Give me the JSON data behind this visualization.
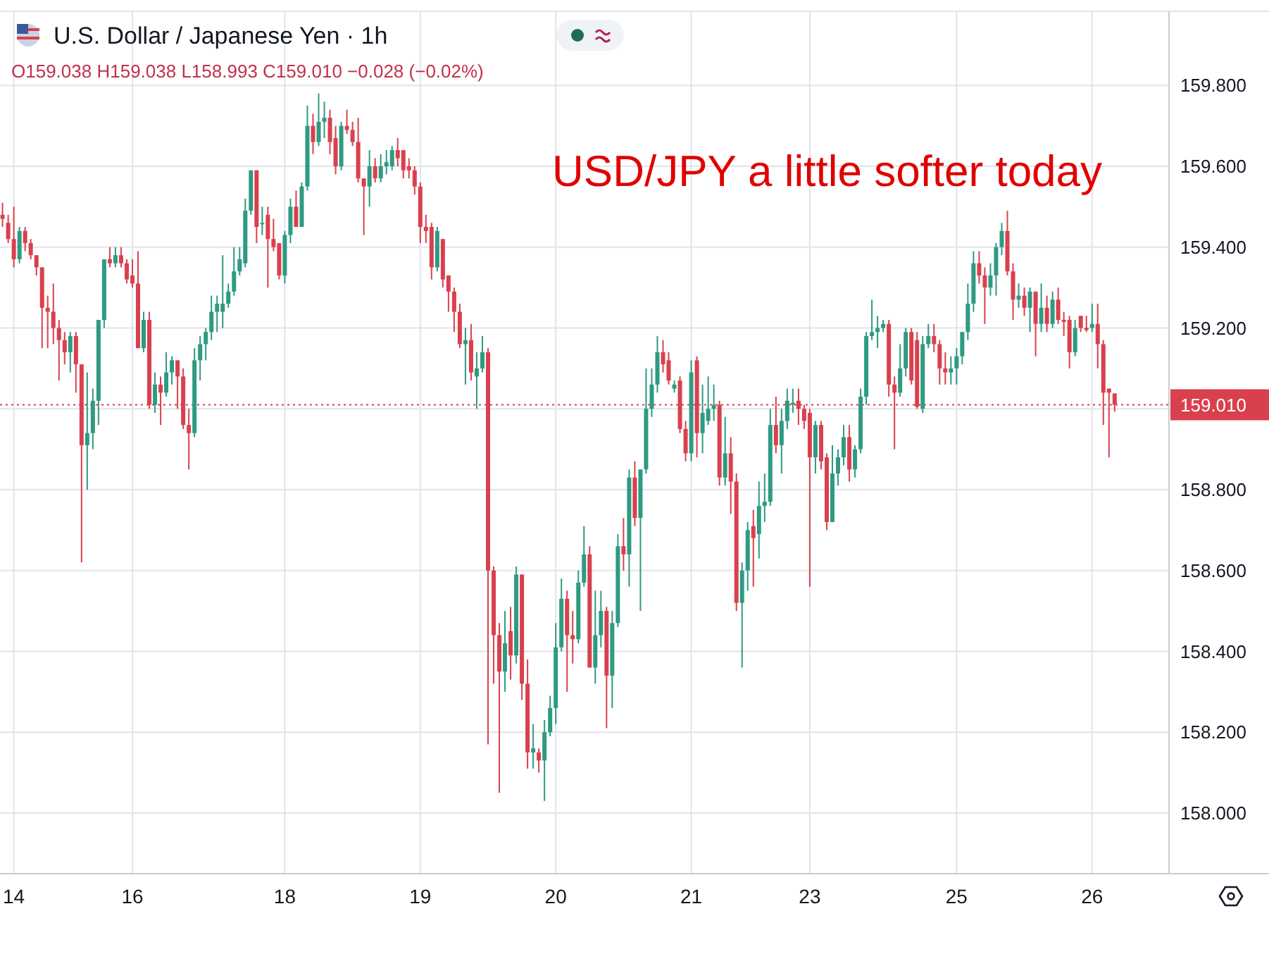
{
  "chart_data": {
    "type": "candlestick",
    "title": "U.S. Dollar / Japanese Yen · 1h",
    "annotations": [
      "O159.038 H159.038 L158.993 C159.010 −0.028 (−0.02%)",
      "USD/JPY a little softer today"
    ],
    "categories": [
      null,
      null,
      "14",
      null,
      null,
      null,
      null,
      null,
      null,
      null,
      null,
      null,
      null,
      null,
      null,
      null,
      null,
      null,
      null,
      null,
      null,
      null,
      null,
      "16",
      null,
      null,
      null,
      null,
      null,
      null,
      null,
      null,
      null,
      null,
      null,
      null,
      null,
      null,
      null,
      null,
      null,
      null,
      null,
      null,
      null,
      null,
      null,
      null,
      null,
      null,
      "18",
      null,
      null,
      null,
      null,
      null,
      null,
      null,
      null,
      null,
      null,
      null,
      null,
      null,
      null,
      null,
      null,
      null,
      null,
      null,
      null,
      null,
      null,
      null,
      "19",
      null,
      null,
      null,
      null,
      null,
      null,
      null,
      null,
      null,
      null,
      null,
      null,
      null,
      null,
      null,
      null,
      null,
      null,
      null,
      null,
      null,
      null,
      null,
      "20",
      null,
      null,
      null,
      null,
      null,
      null,
      null,
      null,
      null,
      null,
      null,
      null,
      null,
      null,
      null,
      null,
      null,
      null,
      null,
      null,
      null,
      null,
      null,
      "21",
      null,
      null,
      null,
      null,
      null,
      null,
      null,
      null,
      null,
      null,
      null,
      null,
      null,
      null,
      null,
      null,
      null,
      null,
      null,
      null,
      "23",
      null,
      null,
      null,
      null,
      null,
      null,
      null,
      null,
      null,
      null,
      null,
      null,
      null,
      null,
      null,
      null,
      null,
      null,
      null,
      null,
      null,
      null,
      null,
      null,
      null,
      "25",
      null,
      null,
      null,
      null,
      null,
      null,
      null,
      null,
      null,
      null,
      null,
      null,
      null,
      null,
      null,
      null,
      null,
      null,
      null,
      null,
      null,
      null,
      null,
      "26",
      null,
      null,
      null,
      null
    ],
    "ohlc": [
      [
        159.48,
        159.51,
        159.45,
        159.47
      ],
      [
        159.46,
        159.48,
        159.41,
        159.42
      ],
      [
        159.42,
        159.5,
        159.35,
        159.37
      ],
      [
        159.37,
        159.45,
        159.36,
        159.44
      ],
      [
        159.44,
        159.45,
        159.39,
        159.41
      ],
      [
        159.41,
        159.42,
        159.37,
        159.38
      ],
      [
        159.38,
        159.38,
        159.33,
        159.35
      ],
      [
        159.35,
        159.35,
        159.15,
        159.25
      ],
      [
        159.25,
        159.28,
        159.15,
        159.24
      ],
      [
        159.24,
        159.31,
        159.16,
        159.2
      ],
      [
        159.2,
        159.22,
        159.07,
        159.17
      ],
      [
        159.17,
        159.19,
        159.11,
        159.14
      ],
      [
        159.14,
        159.19,
        159.09,
        159.18
      ],
      [
        159.18,
        159.19,
        159.04,
        159.11
      ],
      [
        159.11,
        159.11,
        158.62,
        158.91
      ],
      [
        158.91,
        159.09,
        158.8,
        158.94
      ],
      [
        158.94,
        159.05,
        158.9,
        159.02
      ],
      [
        159.02,
        159.22,
        158.96,
        159.22
      ],
      [
        159.22,
        159.37,
        159.2,
        159.37
      ],
      [
        159.37,
        159.4,
        159.35,
        159.36
      ],
      [
        159.36,
        159.4,
        159.35,
        159.38
      ],
      [
        159.38,
        159.4,
        159.35,
        159.36
      ],
      [
        159.36,
        159.37,
        159.31,
        159.32
      ],
      [
        159.33,
        159.37,
        159.3,
        159.31
      ],
      [
        159.31,
        159.39,
        159.15,
        159.15
      ],
      [
        159.15,
        159.24,
        159.14,
        159.22
      ],
      [
        159.22,
        159.24,
        159.0,
        159.01
      ],
      [
        159.01,
        159.09,
        158.99,
        159.06
      ],
      [
        159.06,
        159.08,
        158.96,
        159.04
      ],
      [
        159.04,
        159.14,
        159.03,
        159.09
      ],
      [
        159.09,
        159.13,
        159.06,
        159.12
      ],
      [
        159.12,
        159.12,
        159.0,
        159.08
      ],
      [
        159.08,
        159.1,
        158.95,
        158.96
      ],
      [
        158.96,
        159.0,
        158.85,
        158.94
      ],
      [
        158.94,
        159.15,
        158.93,
        159.12
      ],
      [
        159.12,
        159.18,
        159.07,
        159.16
      ],
      [
        159.16,
        159.2,
        159.12,
        159.19
      ],
      [
        159.19,
        159.28,
        159.17,
        159.24
      ],
      [
        159.24,
        159.28,
        159.19,
        159.26
      ],
      [
        159.24,
        159.38,
        159.2,
        159.26
      ],
      [
        159.26,
        159.31,
        159.25,
        159.29
      ],
      [
        159.29,
        159.4,
        159.28,
        159.34
      ],
      [
        159.34,
        159.4,
        159.33,
        159.37
      ],
      [
        159.36,
        159.52,
        159.35,
        159.49
      ],
      [
        159.49,
        159.59,
        159.48,
        159.59
      ],
      [
        159.59,
        159.59,
        159.41,
        159.45
      ],
      [
        159.46,
        159.5,
        159.43,
        159.46
      ],
      [
        159.48,
        159.5,
        159.3,
        159.42
      ],
      [
        159.42,
        159.47,
        159.39,
        159.4
      ],
      [
        159.41,
        159.41,
        159.32,
        159.33
      ],
      [
        159.33,
        159.44,
        159.31,
        159.43
      ],
      [
        159.43,
        159.52,
        159.41,
        159.5
      ],
      [
        159.5,
        159.54,
        159.45,
        159.45
      ],
      [
        159.45,
        159.56,
        159.45,
        159.55
      ],
      [
        159.55,
        159.75,
        159.54,
        159.7
      ],
      [
        159.7,
        159.73,
        159.63,
        159.66
      ],
      [
        159.66,
        159.78,
        159.65,
        159.71
      ],
      [
        159.71,
        159.76,
        159.67,
        159.72
      ],
      [
        159.72,
        159.74,
        159.63,
        159.66
      ],
      [
        159.67,
        159.7,
        159.58,
        159.6
      ],
      [
        159.6,
        159.71,
        159.59,
        159.7
      ],
      [
        159.7,
        159.74,
        159.68,
        159.69
      ],
      [
        159.69,
        159.71,
        159.65,
        159.66
      ],
      [
        159.66,
        159.72,
        159.56,
        159.57
      ],
      [
        159.57,
        159.57,
        159.43,
        159.55
      ],
      [
        159.55,
        159.64,
        159.5,
        159.6
      ],
      [
        159.6,
        159.62,
        159.56,
        159.57
      ],
      [
        159.57,
        159.63,
        159.56,
        159.6
      ],
      [
        159.6,
        159.64,
        159.58,
        159.61
      ],
      [
        159.6,
        159.65,
        159.59,
        159.64
      ],
      [
        159.64,
        159.67,
        159.6,
        159.62
      ],
      [
        159.64,
        159.64,
        159.57,
        159.59
      ],
      [
        159.6,
        159.62,
        159.57,
        159.59
      ],
      [
        159.59,
        159.6,
        159.53,
        159.55
      ],
      [
        159.55,
        159.56,
        159.41,
        159.45
      ],
      [
        159.45,
        159.48,
        159.41,
        159.44
      ],
      [
        159.45,
        159.46,
        159.32,
        159.35
      ],
      [
        159.35,
        159.45,
        159.34,
        159.44
      ],
      [
        159.42,
        159.42,
        159.3,
        159.32
      ],
      [
        159.33,
        159.33,
        159.24,
        159.29
      ],
      [
        159.29,
        159.3,
        159.19,
        159.24
      ],
      [
        159.24,
        159.26,
        159.15,
        159.16
      ],
      [
        159.16,
        159.2,
        159.06,
        159.17
      ],
      [
        159.17,
        159.21,
        159.07,
        159.09
      ],
      [
        159.08,
        159.14,
        159.0,
        159.1
      ],
      [
        159.1,
        159.18,
        159.09,
        159.14
      ],
      [
        159.14,
        159.15,
        158.17,
        158.6
      ],
      [
        158.6,
        158.61,
        158.32,
        158.44
      ],
      [
        158.44,
        158.47,
        158.05,
        158.35
      ],
      [
        158.35,
        158.5,
        158.3,
        158.42
      ],
      [
        158.45,
        158.51,
        158.33,
        158.39
      ],
      [
        158.39,
        158.61,
        158.37,
        158.59
      ],
      [
        158.59,
        158.59,
        158.28,
        158.32
      ],
      [
        158.32,
        158.38,
        158.11,
        158.15
      ],
      [
        158.15,
        158.22,
        158.11,
        158.16
      ],
      [
        158.15,
        158.16,
        158.1,
        158.13
      ],
      [
        158.13,
        158.23,
        158.03,
        158.2
      ],
      [
        158.2,
        158.29,
        158.19,
        158.26
      ],
      [
        158.26,
        158.47,
        158.22,
        158.41
      ],
      [
        158.41,
        158.58,
        158.4,
        158.53
      ],
      [
        158.53,
        158.55,
        158.3,
        158.44
      ],
      [
        158.44,
        158.5,
        158.37,
        158.43
      ],
      [
        158.43,
        158.6,
        158.42,
        158.57
      ],
      [
        158.57,
        158.71,
        158.56,
        158.64
      ],
      [
        158.64,
        158.66,
        158.36,
        158.36
      ],
      [
        158.36,
        158.55,
        158.32,
        158.44
      ],
      [
        158.44,
        158.55,
        158.41,
        158.5
      ],
      [
        158.5,
        158.51,
        158.21,
        158.34
      ],
      [
        158.34,
        158.5,
        158.26,
        158.47
      ],
      [
        158.47,
        158.69,
        158.46,
        158.66
      ],
      [
        158.66,
        158.73,
        158.6,
        158.64
      ],
      [
        158.64,
        158.85,
        158.56,
        158.83
      ],
      [
        158.83,
        158.87,
        158.71,
        158.73
      ],
      [
        158.73,
        158.85,
        158.5,
        158.85
      ],
      [
        158.85,
        159.1,
        158.84,
        159.0
      ],
      [
        159.0,
        159.1,
        158.98,
        159.06
      ],
      [
        159.06,
        159.18,
        159.04,
        159.14
      ],
      [
        159.14,
        159.17,
        159.09,
        159.11
      ],
      [
        159.12,
        159.14,
        159.06,
        159.07
      ],
      [
        159.05,
        159.07,
        159.04,
        159.06
      ],
      [
        159.07,
        159.08,
        158.94,
        158.95
      ],
      [
        158.95,
        158.97,
        158.87,
        158.89
      ],
      [
        158.89,
        159.12,
        158.87,
        159.09
      ],
      [
        159.12,
        159.13,
        158.88,
        158.94
      ],
      [
        158.94,
        159.06,
        158.89,
        158.99
      ],
      [
        158.97,
        159.08,
        158.96,
        159.0
      ],
      [
        159.0,
        159.06,
        158.97,
        159.01
      ],
      [
        159.01,
        159.02,
        158.81,
        158.83
      ],
      [
        158.83,
        158.98,
        158.81,
        158.89
      ],
      [
        158.89,
        158.93,
        158.74,
        158.82
      ],
      [
        158.82,
        158.84,
        158.5,
        158.52
      ],
      [
        158.52,
        158.62,
        158.36,
        158.6
      ],
      [
        158.6,
        158.72,
        158.55,
        158.7
      ],
      [
        158.71,
        158.75,
        158.56,
        158.68
      ],
      [
        158.69,
        158.82,
        158.63,
        158.76
      ],
      [
        158.76,
        158.84,
        158.72,
        158.77
      ],
      [
        158.77,
        159.0,
        158.76,
        158.96
      ],
      [
        158.96,
        159.03,
        158.89,
        158.91
      ],
      [
        158.91,
        159.0,
        158.84,
        158.97
      ],
      [
        158.97,
        159.05,
        158.95,
        159.02
      ],
      [
        159.01,
        159.05,
        158.99,
        159.015
      ],
      [
        159.02,
        159.05,
        158.96,
        159.0
      ],
      [
        159.0,
        159.01,
        158.95,
        158.97
      ],
      [
        158.99,
        159.0,
        158.56,
        158.88
      ],
      [
        158.88,
        158.97,
        158.84,
        158.96
      ],
      [
        158.96,
        158.97,
        158.85,
        158.87
      ],
      [
        158.88,
        158.89,
        158.7,
        158.72
      ],
      [
        158.72,
        158.91,
        158.72,
        158.84
      ],
      [
        158.84,
        158.9,
        158.81,
        158.88
      ],
      [
        158.88,
        158.96,
        158.86,
        158.93
      ],
      [
        158.93,
        158.96,
        158.82,
        158.85
      ],
      [
        158.85,
        158.91,
        158.83,
        158.9
      ],
      [
        158.9,
        159.05,
        158.89,
        159.03
      ],
      [
        159.03,
        159.19,
        159.01,
        159.18
      ],
      [
        159.18,
        159.27,
        159.17,
        159.19
      ],
      [
        159.19,
        159.23,
        159.15,
        159.2
      ],
      [
        159.2,
        159.22,
        159.19,
        159.21
      ],
      [
        159.21,
        159.22,
        159.03,
        159.06
      ],
      [
        159.06,
        159.08,
        158.9,
        159.04
      ],
      [
        159.04,
        159.16,
        159.03,
        159.1
      ],
      [
        159.1,
        159.2,
        159.08,
        159.19
      ],
      [
        159.19,
        159.2,
        159.06,
        159.07
      ],
      [
        159.17,
        159.19,
        159.0,
        159.005
      ],
      [
        159.0,
        159.18,
        158.99,
        159.16
      ],
      [
        159.16,
        159.21,
        159.15,
        159.18
      ],
      [
        159.18,
        159.21,
        159.14,
        159.16
      ],
      [
        159.16,
        159.17,
        159.06,
        159.1
      ],
      [
        159.1,
        159.14,
        159.06,
        159.09
      ],
      [
        159.09,
        159.13,
        159.06,
        159.1
      ],
      [
        159.1,
        159.15,
        159.06,
        159.13
      ],
      [
        159.13,
        159.19,
        159.11,
        159.19
      ],
      [
        159.19,
        159.31,
        159.17,
        159.26
      ],
      [
        159.26,
        159.39,
        159.24,
        159.36
      ],
      [
        159.36,
        159.39,
        159.31,
        159.33
      ],
      [
        159.33,
        159.35,
        159.21,
        159.3
      ],
      [
        159.3,
        159.36,
        159.28,
        159.33
      ],
      [
        159.33,
        159.41,
        159.28,
        159.4
      ],
      [
        159.4,
        159.46,
        159.38,
        159.44
      ],
      [
        159.44,
        159.49,
        159.33,
        159.34
      ],
      [
        159.34,
        159.36,
        159.22,
        159.27
      ],
      [
        159.27,
        159.31,
        159.25,
        159.28
      ],
      [
        159.28,
        159.3,
        159.23,
        159.25
      ],
      [
        159.25,
        159.3,
        159.19,
        159.29
      ],
      [
        159.29,
        159.29,
        159.13,
        159.21
      ],
      [
        159.21,
        159.31,
        159.19,
        159.25
      ],
      [
        159.25,
        159.28,
        159.19,
        159.21
      ],
      [
        159.21,
        159.29,
        159.2,
        159.27
      ],
      [
        159.27,
        159.3,
        159.21,
        159.22
      ],
      [
        159.22,
        159.24,
        159.18,
        159.215
      ],
      [
        159.22,
        159.23,
        159.1,
        159.14
      ],
      [
        159.14,
        159.22,
        159.13,
        159.2
      ],
      [
        159.23,
        159.23,
        159.19,
        159.2
      ],
      [
        159.2,
        159.23,
        159.19,
        159.195
      ],
      [
        159.2,
        159.26,
        159.19,
        159.21
      ],
      [
        159.21,
        159.26,
        159.1,
        159.16
      ],
      [
        159.16,
        159.17,
        158.96,
        159.04
      ],
      [
        159.05,
        159.05,
        158.88,
        159.04
      ],
      [
        159.038,
        159.038,
        158.993,
        159.01
      ]
    ],
    "ylim": [
      157.85,
      159.98
    ],
    "yticks": [
      {
        "value": 158,
        "label": "158.000"
      },
      {
        "value": 158.2,
        "label": "158.200"
      },
      {
        "value": 158.4,
        "label": "158.400"
      },
      {
        "value": 158.6,
        "label": "158.600"
      },
      {
        "value": 158.8,
        "label": "158.800"
      },
      {
        "value": 159,
        "label": null
      },
      {
        "value": 159.2,
        "label": "159.200"
      },
      {
        "value": 159.4,
        "label": "159.400"
      },
      {
        "value": 159.6,
        "label": "159.600"
      },
      {
        "value": 159.8,
        "label": "159.800"
      }
    ],
    "ref_lines": [
      {
        "axis": "y",
        "value": 159.01,
        "label": "159.010",
        "color": "#d9404d",
        "line_style": "dotted"
      }
    ],
    "grid": true
  }
}
